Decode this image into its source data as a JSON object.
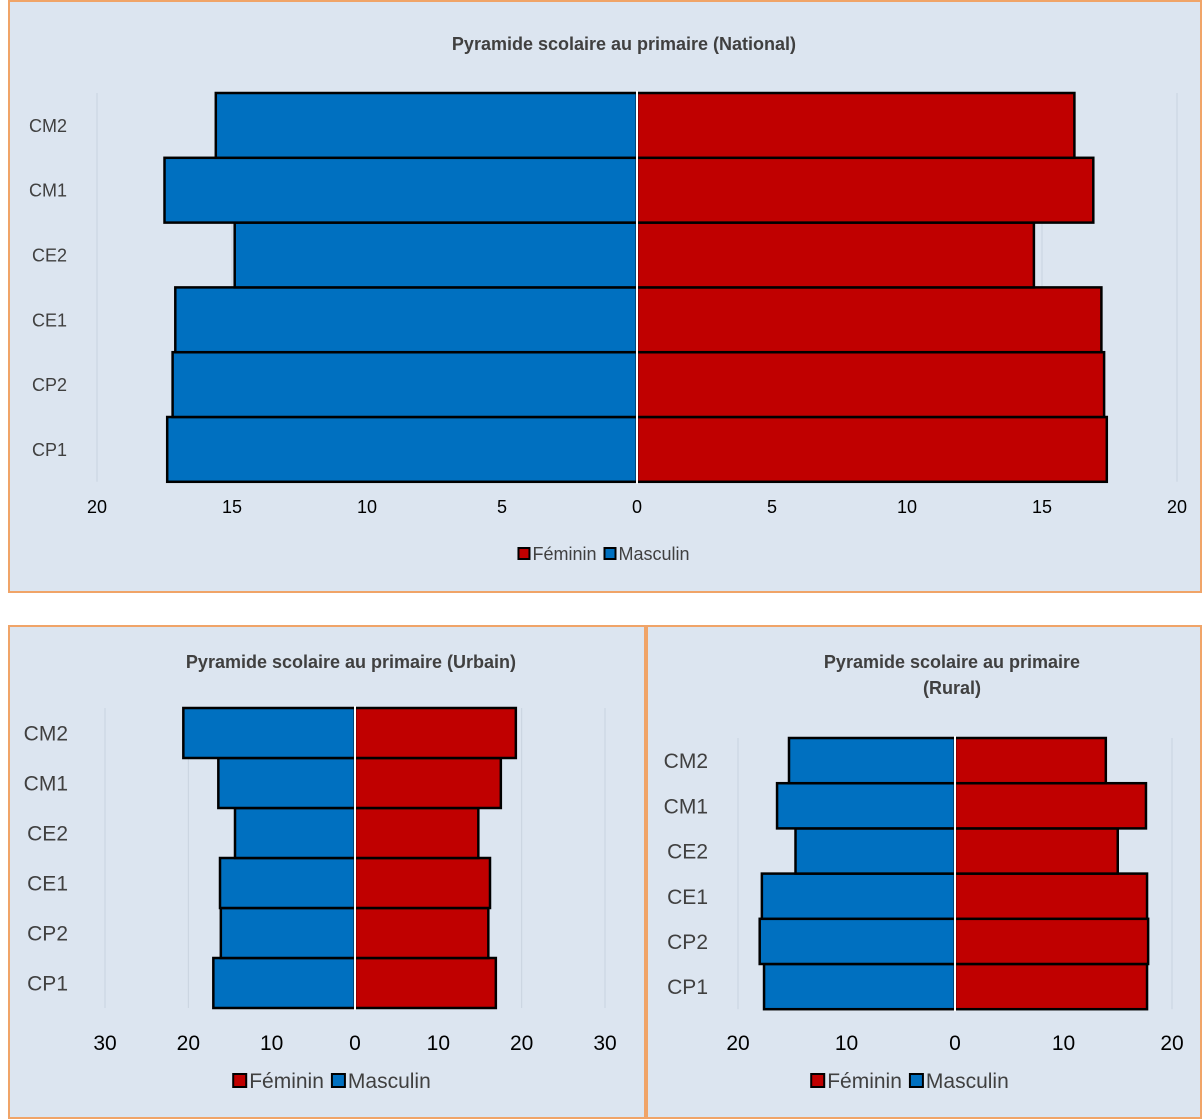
{
  "chart_data": [
    {
      "type": "bar",
      "title": "Pyramide scolaire au primaire (National)",
      "categories": [
        "CP1",
        "CP2",
        "CE1",
        "CE2",
        "CM1",
        "CM2"
      ],
      "series": [
        {
          "name": "Féminin",
          "values": [
            17.4,
            17.3,
            17.2,
            14.7,
            16.9,
            16.2
          ],
          "color": "#c00000"
        },
        {
          "name": "Masculin",
          "values": [
            17.4,
            17.2,
            17.1,
            14.9,
            17.5,
            15.6
          ],
          "color": "#0070c0"
        }
      ],
      "xlim": [
        -20,
        20
      ],
      "xticks": [
        "20",
        "15",
        "10",
        "5",
        "0",
        "5",
        "10",
        "15",
        "20"
      ],
      "grid": "vertical",
      "legend": "bottom"
    },
    {
      "type": "bar",
      "title": "Pyramide scolaire au primaire (Urbain)",
      "categories": [
        "CP1",
        "CP2",
        "CE1",
        "CE2",
        "CM1",
        "CM2"
      ],
      "series": [
        {
          "name": "Féminin",
          "values": [
            16.9,
            16.0,
            16.2,
            14.8,
            17.5,
            19.3
          ],
          "color": "#c00000"
        },
        {
          "name": "Masculin",
          "values": [
            17.0,
            16.1,
            16.2,
            14.4,
            16.4,
            20.6
          ],
          "color": "#0070c0"
        }
      ],
      "xlim": [
        -30,
        30
      ],
      "xticks": [
        "30",
        "20",
        "10",
        "0",
        "10",
        "20",
        "30"
      ],
      "grid": "vertical",
      "legend": "bottom"
    },
    {
      "type": "bar",
      "title": "Pyramide scolaire au primaire (Rural)",
      "categories": [
        "CP1",
        "CP2",
        "CE1",
        "CE2",
        "CM1",
        "CM2"
      ],
      "series": [
        {
          "name": "Féminin",
          "values": [
            17.7,
            17.8,
            17.7,
            15.0,
            17.6,
            13.9
          ],
          "color": "#c00000"
        },
        {
          "name": "Masculin",
          "values": [
            17.6,
            18.0,
            17.8,
            14.7,
            16.4,
            15.3
          ],
          "color": "#0070c0"
        }
      ],
      "xlim": [
        -20,
        20
      ],
      "xticks": [
        "20",
        "10",
        "0",
        "10",
        "20"
      ],
      "grid": "vertical",
      "legend": "bottom"
    }
  ]
}
